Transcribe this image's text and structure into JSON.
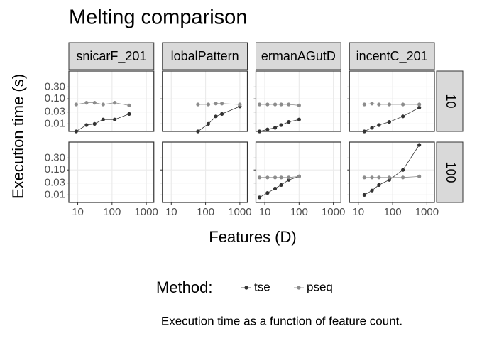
{
  "chart_data": {
    "type": "line",
    "title": "Melting comparison",
    "x_label": "Features (D)",
    "y_label": "Execution time (s)",
    "legend_title": "Method:",
    "caption": "Execution time as a function of feature count.",
    "log_x": true,
    "log_y": true,
    "grid": true,
    "legend": "bottom",
    "columns": [
      "snicarF_201",
      "lobalPattern",
      "ermanAGutD",
      "incentC_201"
    ],
    "rows": [
      "10",
      "100"
    ],
    "xlim": [
      5.5,
      1660
    ],
    "xticks": [
      10,
      100,
      1000
    ],
    "ylim": [
      0.005,
      1.3
    ],
    "yticks": [
      {
        "value": 0.01,
        "label": "0.01"
      },
      {
        "value": 0.03,
        "label": "0.03"
      },
      {
        "value": 0.1,
        "label": "0.10"
      },
      {
        "value": 0.3,
        "label": "0.30"
      }
    ],
    "series": [
      {
        "name": "tse",
        "color": "#333333"
      },
      {
        "name": "pseq",
        "color": "#8c8c8c"
      }
    ],
    "panels": [
      {
        "column": 0,
        "row": 0,
        "x": [
          9,
          18,
          31,
          55,
          120,
          316
        ],
        "series": [
          [
            0.005,
            0.009,
            0.01,
            0.015,
            0.015,
            0.025
          ],
          [
            0.06,
            0.07,
            0.07,
            0.06,
            0.07,
            0.055
          ]
        ]
      },
      {
        "column": 1,
        "row": 0,
        "x": [
          60,
          120,
          200,
          300,
          1000
        ],
        "series": [
          [
            0.005,
            0.01,
            0.02,
            0.025,
            0.05
          ],
          [
            0.06,
            0.06,
            0.065,
            0.065,
            0.06
          ]
        ]
      },
      {
        "column": 2,
        "row": 0,
        "x": [
          7,
          12,
          20,
          30,
          50,
          100
        ],
        "series": [
          [
            0.005,
            0.006,
            0.007,
            0.009,
            0.012,
            0.015
          ],
          [
            0.06,
            0.06,
            0.06,
            0.06,
            0.06,
            0.055
          ]
        ]
      },
      {
        "column": 3,
        "row": 0,
        "x": [
          15,
          25,
          40,
          80,
          200,
          600
        ],
        "series": [
          [
            0.005,
            0.007,
            0.009,
            0.012,
            0.02,
            0.045
          ],
          [
            0.06,
            0.065,
            0.06,
            0.06,
            0.06,
            0.06
          ]
        ]
      },
      {
        "column": 2,
        "row": 1,
        "x": [
          7,
          12,
          20,
          30,
          50,
          100
        ],
        "series": [
          [
            0.008,
            0.012,
            0.018,
            0.025,
            0.04,
            0.055
          ],
          [
            0.05,
            0.05,
            0.05,
            0.05,
            0.05,
            0.055
          ]
        ]
      },
      {
        "column": 3,
        "row": 1,
        "x": [
          15,
          25,
          40,
          80,
          200,
          600
        ],
        "series": [
          [
            0.01,
            0.015,
            0.025,
            0.04,
            0.1,
            1.0
          ],
          [
            0.05,
            0.05,
            0.05,
            0.05,
            0.05,
            0.055
          ]
        ]
      }
    ]
  }
}
